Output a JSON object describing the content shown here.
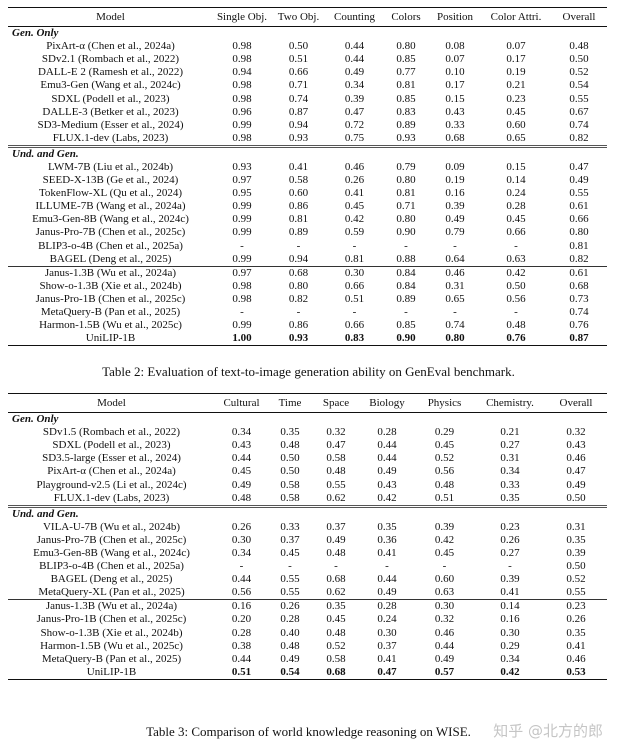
{
  "table2": {
    "headers": [
      "Model",
      "Single Obj.",
      "Two Obj.",
      "Counting",
      "Colors",
      "Position",
      "Color Attri.",
      "Overall"
    ],
    "groups": [
      {
        "label": "Gen. Only",
        "rows": [
          [
            "PixArt-α (Chen et al., 2024a)",
            "0.98",
            "0.50",
            "0.44",
            "0.80",
            "0.08",
            "0.07",
            "0.48"
          ],
          [
            "SDv2.1 (Rombach et al., 2022)",
            "0.98",
            "0.51",
            "0.44",
            "0.85",
            "0.07",
            "0.17",
            "0.50"
          ],
          [
            "DALL-E 2 (Ramesh et al., 2022)",
            "0.94",
            "0.66",
            "0.49",
            "0.77",
            "0.10",
            "0.19",
            "0.52"
          ],
          [
            "Emu3-Gen (Wang et al., 2024c)",
            "0.98",
            "0.71",
            "0.34",
            "0.81",
            "0.17",
            "0.21",
            "0.54"
          ],
          [
            "SDXL (Podell et al., 2023)",
            "0.98",
            "0.74",
            "0.39",
            "0.85",
            "0.15",
            "0.23",
            "0.55"
          ],
          [
            "DALLE-3 (Betker et al., 2023)",
            "0.96",
            "0.87",
            "0.47",
            "0.83",
            "0.43",
            "0.45",
            "0.67"
          ],
          [
            "SD3-Medium (Esser et al., 2024)",
            "0.99",
            "0.94",
            "0.72",
            "0.89",
            "0.33",
            "0.60",
            "0.74"
          ],
          [
            "FLUX.1-dev (Labs, 2023)",
            "0.98",
            "0.93",
            "0.75",
            "0.93",
            "0.68",
            "0.65",
            "0.82"
          ]
        ]
      },
      {
        "label": "Und. and Gen.",
        "rows": [
          [
            "LWM-7B (Liu et al., 2024b)",
            "0.93",
            "0.41",
            "0.46",
            "0.79",
            "0.09",
            "0.15",
            "0.47"
          ],
          [
            "SEED-X-13B (Ge et al., 2024)",
            "0.97",
            "0.58",
            "0.26",
            "0.80",
            "0.19",
            "0.14",
            "0.49"
          ],
          [
            "TokenFlow-XL (Qu et al., 2024)",
            "0.95",
            "0.60",
            "0.41",
            "0.81",
            "0.16",
            "0.24",
            "0.55"
          ],
          [
            "ILLUME-7B (Wang et al., 2024a)",
            "0.99",
            "0.86",
            "0.45",
            "0.71",
            "0.39",
            "0.28",
            "0.61"
          ],
          [
            "Emu3-Gen-8B (Wang et al., 2024c)",
            "0.99",
            "0.81",
            "0.42",
            "0.80",
            "0.49",
            "0.45",
            "0.66"
          ],
          [
            "Janus-Pro-7B (Chen et al., 2025c)",
            "0.99",
            "0.89",
            "0.59",
            "0.90",
            "0.79",
            "0.66",
            "0.80"
          ],
          [
            "BLIP3-o-4B (Chen et al., 2025a)",
            "-",
            "-",
            "-",
            "-",
            "-",
            "-",
            "0.81"
          ],
          [
            "BAGEL (Deng et al., 2025)",
            "0.99",
            "0.94",
            "0.81",
            "0.88",
            "0.64",
            "0.63",
            "0.82"
          ]
        ]
      },
      {
        "label": "",
        "rows": [
          [
            "Janus-1.3B (Wu et al., 2024a)",
            "0.97",
            "0.68",
            "0.30",
            "0.84",
            "0.46",
            "0.42",
            "0.61"
          ],
          [
            "Show-o-1.3B (Xie et al., 2024b)",
            "0.98",
            "0.80",
            "0.66",
            "0.84",
            "0.31",
            "0.50",
            "0.68"
          ],
          [
            "Janus-Pro-1B (Chen et al., 2025c)",
            "0.98",
            "0.82",
            "0.51",
            "0.89",
            "0.65",
            "0.56",
            "0.73"
          ],
          [
            "MetaQuery-B (Pan et al., 2025)",
            "-",
            "-",
            "-",
            "-",
            "-",
            "-",
            "0.74"
          ],
          [
            "Harmon-1.5B (Wu et al., 2025c)",
            "0.99",
            "0.86",
            "0.66",
            "0.85",
            "0.74",
            "0.48",
            "0.76"
          ],
          [
            "UniLIP-1B",
            "1.00",
            "0.93",
            "0.83",
            "0.90",
            "0.80",
            "0.76",
            "0.87"
          ]
        ]
      }
    ],
    "caption": "Table 2: Evaluation of text-to-image generation ability on GenEval benchmark."
  },
  "table3": {
    "headers": [
      "Model",
      "Cultural",
      "Time",
      "Space",
      "Biology",
      "Physics",
      "Chemistry.",
      "Overall"
    ],
    "groups": [
      {
        "label": "Gen. Only",
        "rows": [
          [
            "SDv1.5 (Rombach et al., 2022)",
            "0.34",
            "0.35",
            "0.32",
            "0.28",
            "0.29",
            "0.21",
            "0.32"
          ],
          [
            "SDXL (Podell et al., 2023)",
            "0.43",
            "0.48",
            "0.47",
            "0.44",
            "0.45",
            "0.27",
            "0.43"
          ],
          [
            "SD3.5-large (Esser et al., 2024)",
            "0.44",
            "0.50",
            "0.58",
            "0.44",
            "0.52",
            "0.31",
            "0.46"
          ],
          [
            "PixArt-α (Chen et al., 2024a)",
            "0.45",
            "0.50",
            "0.48",
            "0.49",
            "0.56",
            "0.34",
            "0.47"
          ],
          [
            "Playground-v2.5 (Li et al., 2024c)",
            "0.49",
            "0.58",
            "0.55",
            "0.43",
            "0.48",
            "0.33",
            "0.49"
          ],
          [
            "FLUX.1-dev (Labs, 2023)",
            "0.48",
            "0.58",
            "0.62",
            "0.42",
            "0.51",
            "0.35",
            "0.50"
          ]
        ]
      },
      {
        "label": "Und. and Gen.",
        "rows": [
          [
            "VILA-U-7B (Wu et al., 2024b)",
            "0.26",
            "0.33",
            "0.37",
            "0.35",
            "0.39",
            "0.23",
            "0.31"
          ],
          [
            "Janus-Pro-7B (Chen et al., 2025c)",
            "0.30",
            "0.37",
            "0.49",
            "0.36",
            "0.42",
            "0.26",
            "0.35"
          ],
          [
            "Emu3-Gen-8B (Wang et al., 2024c)",
            "0.34",
            "0.45",
            "0.48",
            "0.41",
            "0.45",
            "0.27",
            "0.39"
          ],
          [
            "BLIP3-o-4B (Chen et al., 2025a)",
            "-",
            "-",
            "-",
            "-",
            "-",
            "-",
            "0.50"
          ],
          [
            "BAGEL (Deng et al., 2025)",
            "0.44",
            "0.55",
            "0.68",
            "0.44",
            "0.60",
            "0.39",
            "0.52"
          ],
          [
            "MetaQuery-XL (Pan et al., 2025)",
            "0.56",
            "0.55",
            "0.62",
            "0.49",
            "0.63",
            "0.41",
            "0.55"
          ]
        ]
      },
      {
        "label": "",
        "rows": [
          [
            "Janus-1.3B (Wu et al., 2024a)",
            "0.16",
            "0.26",
            "0.35",
            "0.28",
            "0.30",
            "0.14",
            "0.23"
          ],
          [
            "Janus-Pro-1B (Chen et al., 2025c)",
            "0.20",
            "0.28",
            "0.45",
            "0.24",
            "0.32",
            "0.16",
            "0.26"
          ],
          [
            "Show-o-1.3B (Xie et al., 2024b)",
            "0.28",
            "0.40",
            "0.48",
            "0.30",
            "0.46",
            "0.30",
            "0.35"
          ],
          [
            "Harmon-1.5B (Wu et al., 2025c)",
            "0.38",
            "0.48",
            "0.52",
            "0.37",
            "0.44",
            "0.29",
            "0.41"
          ],
          [
            "MetaQuery-B (Pan et al., 2025)",
            "0.44",
            "0.49",
            "0.58",
            "0.41",
            "0.49",
            "0.34",
            "0.46"
          ],
          [
            "UniLIP-1B",
            "0.51",
            "0.54",
            "0.68",
            "0.47",
            "0.57",
            "0.42",
            "0.53"
          ]
        ]
      }
    ],
    "caption": "Table 3: Comparison of world knowledge reasoning on WISE."
  },
  "watermark": "知乎 @北方的郎"
}
